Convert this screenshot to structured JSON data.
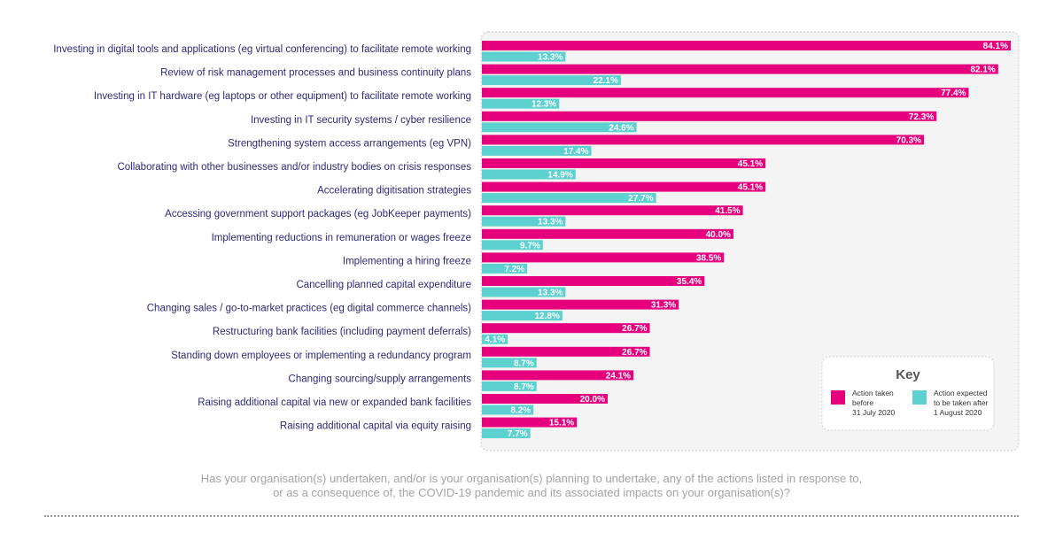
{
  "chart_data": {
    "type": "bar",
    "orientation": "horizontal",
    "categories": [
      "Investing in digital tools and applications (eg virtual conferencing) to facilitate remote working",
      "Review of risk management processes and business continuity plans",
      "Investing in IT hardware (eg laptops or other equipment) to facilitate remote working",
      "Investing in IT security systems / cyber resilience",
      "Strengthening system access arrangements (eg VPN)",
      "Collaborating with other businesses and/or industry bodies on crisis responses",
      "Accelerating digitisation strategies",
      "Accessing government support packages (eg JobKeeper payments)",
      "Implementing reductions in remuneration or wages freeze",
      "Implementing a hiring freeze",
      "Cancelling planned capital expenditure",
      "Changing sales / go-to-market practices (eg digital commerce channels)",
      "Restructuring bank facilities (including payment deferrals)",
      "Standing down employees or implementing a redundancy program",
      "Changing sourcing/supply arrangements",
      "Raising additional capital via new or expanded bank facilities",
      "Raising additional capital via equity raising"
    ],
    "series": [
      {
        "name": "Action taken before 31 July 2020",
        "color": "#e6007e",
        "values": [
          84.1,
          82.1,
          77.4,
          72.3,
          70.3,
          45.1,
          45.1,
          41.5,
          40.0,
          38.5,
          35.4,
          31.3,
          26.7,
          26.7,
          24.1,
          20.0,
          15.1
        ],
        "labels": [
          "84.1%",
          "82.1%",
          "77.4%",
          "72.3%",
          "70.3%",
          "45.1%",
          "45.1%",
          "41.5%",
          "40.0%",
          "38.5%",
          "35.4%",
          "31.3%",
          "26.7%",
          "26.7%",
          "24.1%",
          "20.0%",
          "15.1%"
        ]
      },
      {
        "name": "Action expected to be taken after 1 August 2020",
        "color": "#5cd1cf",
        "values": [
          13.3,
          22.1,
          12.3,
          24.6,
          17.4,
          14.9,
          27.7,
          13.3,
          9.7,
          7.2,
          13.3,
          12.8,
          4.1,
          8.7,
          8.7,
          8.2,
          7.7
        ],
        "labels": [
          "13.3%",
          "22.1%",
          "12.3%",
          "24.6%",
          "17.4%",
          "14.9%",
          "27.7%",
          "13.3%",
          "9.7%",
          "7.2%",
          "13.3%",
          "12.8%",
          "4.1%",
          "8.7%",
          "8.7%",
          "8.2%",
          "7.7%"
        ]
      }
    ],
    "xlim": [
      0,
      84.1
    ],
    "grid": false,
    "legend_position": "bottom-right"
  },
  "legend": {
    "title": "Key",
    "items": [
      {
        "lines": [
          "Action taken",
          "before",
          "31 July 2020"
        ],
        "color": "#e6007e"
      },
      {
        "lines": [
          "Action expected",
          "to be taken after",
          "1 August 2020"
        ],
        "color": "#5cd1cf"
      }
    ]
  },
  "question": {
    "line1": "Has your organisation(s) undertaken, and/or is your organisation(s) planning to undertake, any of the actions listed in response to,",
    "line2": "or as a consequence of, the COVID-19 pandemic and its associated impacts on your organisation(s)?"
  }
}
